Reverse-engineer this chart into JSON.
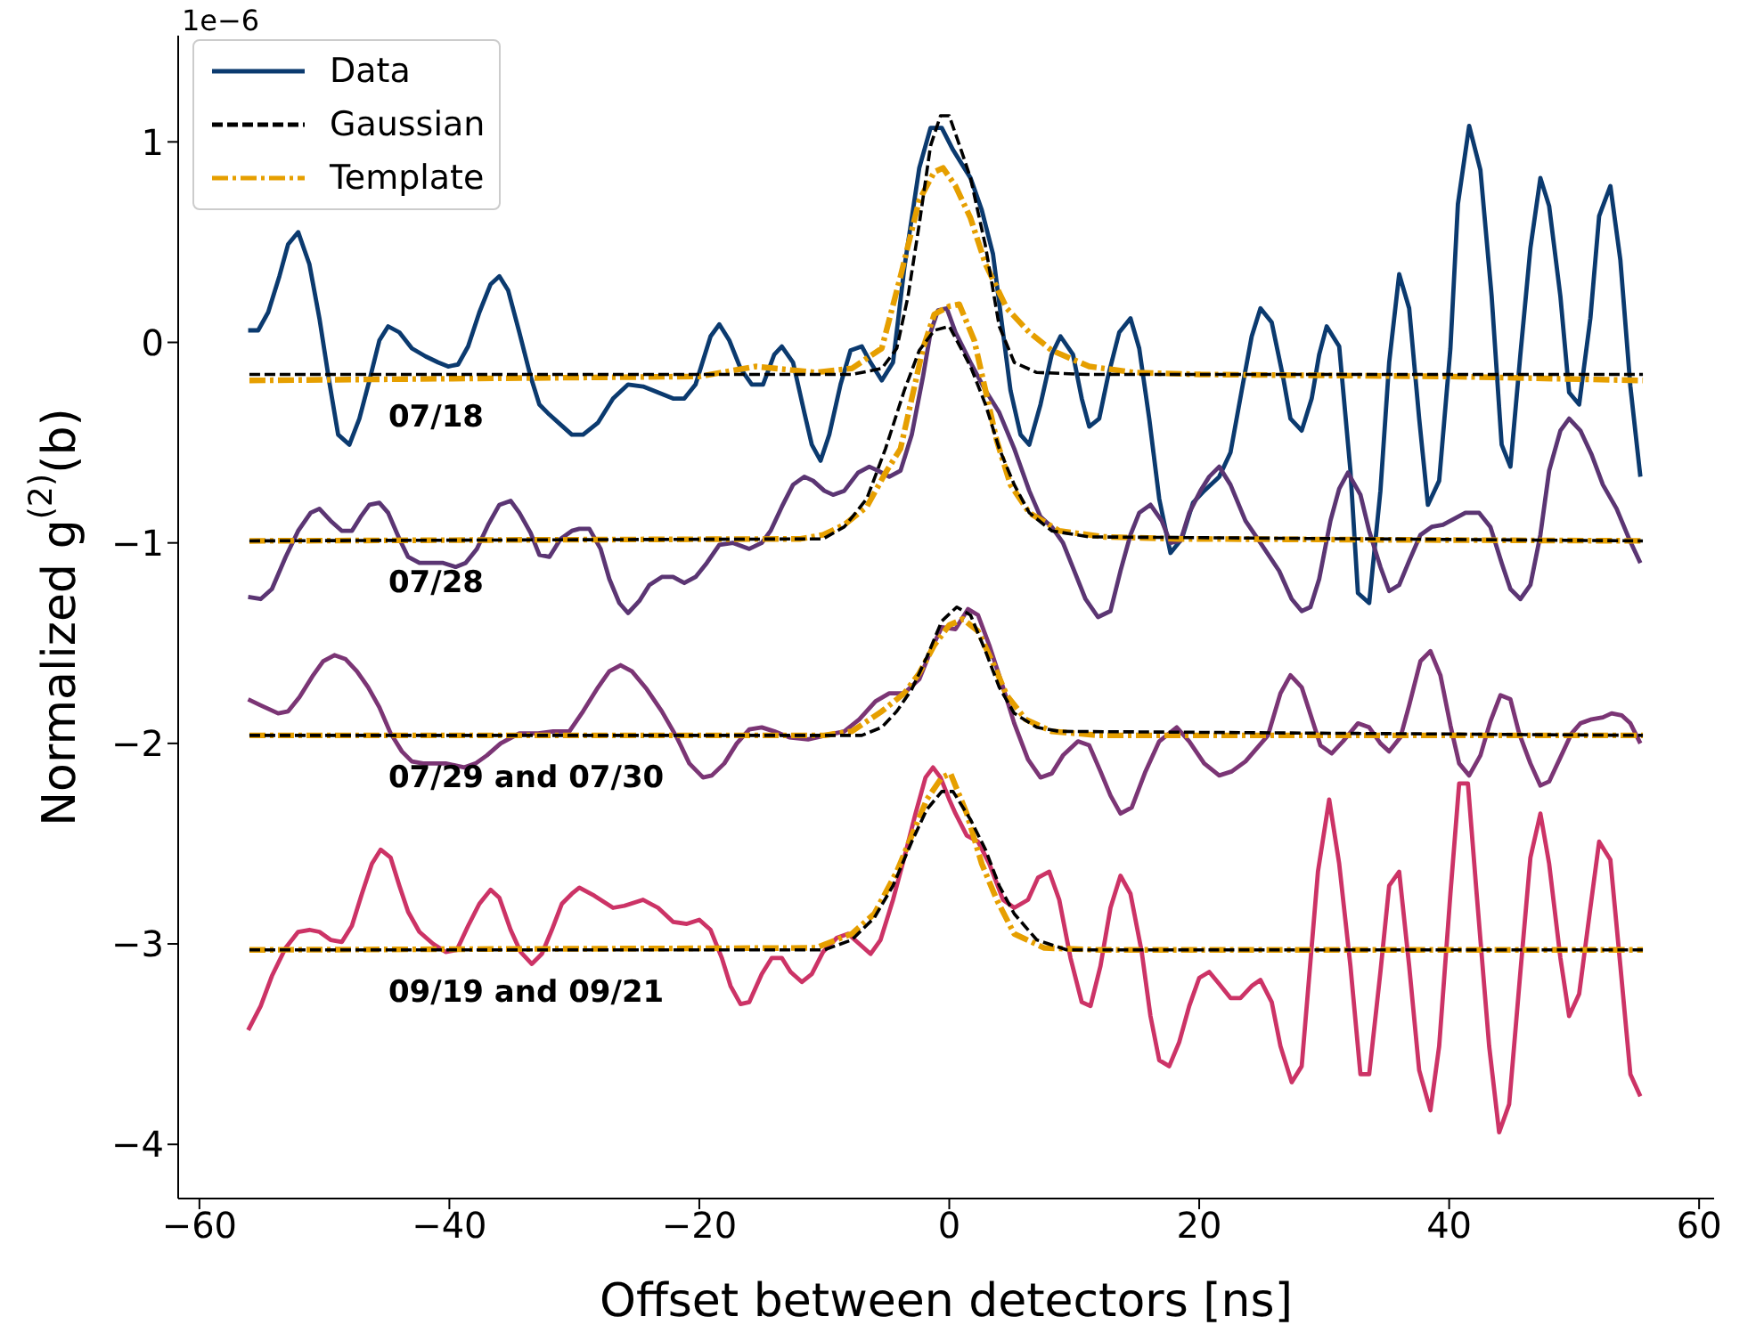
{
  "chart_data": {
    "type": "line",
    "xlabel": "Offset between detectors [ns]",
    "ylabel": "Normalized g$^{(2)}$(b)",
    "xlim": [
      -61.7,
      61.2
    ],
    "xticks": [
      -60,
      -40,
      -20,
      0,
      20,
      40,
      60
    ],
    "ylim": [
      -4.27,
      1.53
    ],
    "yticks": [
      -4,
      -3,
      -2,
      -1,
      0,
      1
    ],
    "legend": "top left",
    "annotations": [
      "1e−6",
      "07/18",
      "07/28",
      "07/29 and 07/30",
      "09/19 and 09/21"
    ],
    "series": [
      {
        "name": "Data",
        "color": "#0b3a6f",
        "line_style": "solid",
        "x": [
          -56.1,
          -55.3,
          -54.5,
          -53.6,
          -52.9,
          -52.1,
          -51.2,
          -50.4,
          -49.6,
          -48.9,
          -48.0,
          -47.2,
          -46.4,
          -45.6,
          -44.9,
          -44.0,
          -43.0,
          -41.9,
          -40.9,
          -40.1,
          -39.3,
          -38.5,
          -37.6,
          -36.7,
          -36.0,
          -35.3,
          -34.4,
          -33.5,
          -32.8,
          -32.0,
          -31.1,
          -30.2,
          -29.3,
          -28.1,
          -26.9,
          -25.7,
          -24.5,
          -23.3,
          -22.1,
          -21.2,
          -20.3,
          -19.1,
          -18.4,
          -17.6,
          -16.7,
          -15.8,
          -14.9,
          -14.0,
          -13.4,
          -12.5,
          -11.6,
          -11.0,
          -10.3,
          -9.6,
          -8.7,
          -7.9,
          -7.0,
          -6.3,
          -5.4,
          -4.5,
          -3.6,
          -2.4,
          -1.5,
          -0.6,
          0.3,
          1.0,
          1.7,
          2.6,
          3.5,
          4.3,
          4.9,
          5.7,
          6.4,
          7.3,
          8.2,
          8.9,
          9.9,
          10.6,
          11.2,
          12.0,
          12.7,
          13.6,
          14.5,
          15.2,
          16.0,
          16.8,
          17.7,
          18.6,
          19.5,
          20.4,
          21.6,
          22.5,
          23.4,
          24.2,
          24.9,
          25.8,
          26.7,
          27.3,
          28.2,
          29.0,
          29.6,
          30.2,
          31.2,
          32.1,
          32.7,
          33.6,
          34.5,
          35.2,
          36.0,
          36.8,
          37.6,
          38.3,
          39.2,
          40.1,
          40.7,
          41.6,
          42.5,
          43.4,
          44.2,
          44.9,
          45.7,
          46.5,
          47.3,
          48.0,
          48.9,
          49.6,
          50.4,
          51.3,
          52.0,
          52.9,
          53.7,
          54.5,
          55.3
        ],
        "values": [
          0.06,
          0.06,
          0.15,
          0.33,
          0.49,
          0.55,
          0.39,
          0.12,
          -0.2,
          -0.46,
          -0.51,
          -0.38,
          -0.19,
          0.01,
          0.08,
          0.05,
          -0.03,
          -0.07,
          -0.1,
          -0.12,
          -0.11,
          -0.02,
          0.15,
          0.29,
          0.33,
          0.26,
          0.05,
          -0.17,
          -0.31,
          -0.36,
          -0.41,
          -0.46,
          -0.46,
          -0.4,
          -0.28,
          -0.21,
          -0.22,
          -0.25,
          -0.28,
          -0.28,
          -0.21,
          0.03,
          0.09,
          0.01,
          -0.13,
          -0.21,
          -0.21,
          -0.06,
          -0.02,
          -0.1,
          -0.35,
          -0.51,
          -0.59,
          -0.46,
          -0.21,
          -0.04,
          -0.02,
          -0.1,
          -0.19,
          -0.1,
          0.37,
          0.87,
          1.07,
          1.07,
          0.96,
          0.89,
          0.82,
          0.66,
          0.44,
          0.05,
          -0.24,
          -0.46,
          -0.51,
          -0.31,
          -0.06,
          0.03,
          -0.06,
          -0.28,
          -0.42,
          -0.38,
          -0.17,
          0.05,
          0.12,
          -0.03,
          -0.38,
          -0.78,
          -1.05,
          -0.98,
          -0.8,
          -0.74,
          -0.67,
          -0.55,
          -0.24,
          0.03,
          0.17,
          0.1,
          -0.17,
          -0.38,
          -0.44,
          -0.28,
          -0.06,
          0.08,
          -0.02,
          -0.64,
          -1.25,
          -1.3,
          -0.74,
          -0.1,
          0.34,
          0.17,
          -0.38,
          -0.81,
          -0.69,
          -0.03,
          0.69,
          1.08,
          0.86,
          0.23,
          -0.51,
          -0.62,
          -0.06,
          0.47,
          0.82,
          0.68,
          0.23,
          -0.25,
          -0.31,
          0.12,
          0.63,
          0.78,
          0.41,
          -0.22,
          -0.67
        ]
      },
      {
        "name": "Gaussian",
        "color": "#000000",
        "line_style": "dashed",
        "x": [
          -56,
          -7.8,
          -5.4,
          -4.2,
          -3.3,
          -2.4,
          -1.5,
          -0.7,
          0,
          1.0,
          1.7,
          2.9,
          4.0,
          5.2,
          7.0,
          11.0,
          55.5
        ],
        "values": [
          -0.16,
          -0.16,
          -0.13,
          -0.03,
          0.23,
          0.59,
          0.98,
          1.13,
          1.13,
          0.95,
          0.82,
          0.48,
          0.08,
          -0.1,
          -0.15,
          -0.16,
          -0.16
        ]
      },
      {
        "name": "Template",
        "color": "#e69f00",
        "line_style": "dashdot",
        "x": [
          -56,
          -20,
          -15.5,
          -10.7,
          -7.8,
          -5.4,
          -3.9,
          -2.4,
          -1.2,
          -0.5,
          0.5,
          1.7,
          2.9,
          4.6,
          6.4,
          8.2,
          11.2,
          14.8,
          20.1,
          40,
          55.5
        ],
        "values": [
          -0.19,
          -0.17,
          -0.12,
          -0.15,
          -0.13,
          -0.03,
          0.33,
          0.71,
          0.85,
          0.87,
          0.78,
          0.62,
          0.39,
          0.17,
          0.05,
          -0.04,
          -0.12,
          -0.15,
          -0.16,
          -0.17,
          -0.19
        ]
      },
      {
        "color": "#5b3573",
        "line_style": "solid",
        "x": [
          -56.1,
          -55.1,
          -54.2,
          -53.1,
          -52.1,
          -51.1,
          -50.4,
          -49.5,
          -48.6,
          -47.8,
          -47.1,
          -46.4,
          -45.6,
          -44.9,
          -44.0,
          -43.3,
          -42.4,
          -41.5,
          -40.5,
          -39.5,
          -38.7,
          -37.8,
          -36.9,
          -36.0,
          -35.1,
          -34.4,
          -33.5,
          -32.8,
          -32.0,
          -31.1,
          -30.2,
          -29.6,
          -28.8,
          -27.9,
          -27.2,
          -26.4,
          -25.7,
          -24.8,
          -24.0,
          -23.0,
          -22.1,
          -21.2,
          -20.3,
          -19.4,
          -18.4,
          -17.3,
          -16.0,
          -15.0,
          -14.3,
          -13.4,
          -12.5,
          -11.6,
          -10.9,
          -10.0,
          -9.3,
          -8.4,
          -7.3,
          -6.4,
          -5.7,
          -4.8,
          -3.9,
          -3.0,
          -2.1,
          -1.5,
          -0.9,
          -0.2,
          0.5,
          1.7,
          2.9,
          4.0,
          5.2,
          6.4,
          7.3,
          8.2,
          9.1,
          10.0,
          10.9,
          11.9,
          12.9,
          13.7,
          14.5,
          15.2,
          16.1,
          17.0,
          17.7,
          18.5,
          19.2,
          20.1,
          20.8,
          21.6,
          22.5,
          23.7,
          24.9,
          26.4,
          27.4,
          28.2,
          28.9,
          29.6,
          30.5,
          31.2,
          31.9,
          32.9,
          33.6,
          34.5,
          35.2,
          36.0,
          36.8,
          37.7,
          38.6,
          39.5,
          40.4,
          41.3,
          42.4,
          43.3,
          44.2,
          44.9,
          45.7,
          46.5,
          47.3,
          48.0,
          48.9,
          49.6,
          50.5,
          51.4,
          52.3,
          53.4,
          54.4,
          55.3
        ],
        "values": [
          -1.27,
          -1.28,
          -1.23,
          -1.07,
          -0.94,
          -0.85,
          -0.83,
          -0.89,
          -0.94,
          -0.94,
          -0.87,
          -0.81,
          -0.8,
          -0.85,
          -0.98,
          -1.07,
          -1.1,
          -1.1,
          -1.1,
          -1.12,
          -1.1,
          -1.03,
          -0.91,
          -0.81,
          -0.79,
          -0.85,
          -0.95,
          -1.06,
          -1.07,
          -0.98,
          -0.94,
          -0.93,
          -0.93,
          -1.03,
          -1.18,
          -1.3,
          -1.35,
          -1.29,
          -1.21,
          -1.17,
          -1.17,
          -1.2,
          -1.17,
          -1.1,
          -1.01,
          -1.0,
          -1.03,
          -1.0,
          -0.94,
          -0.82,
          -0.71,
          -0.67,
          -0.69,
          -0.74,
          -0.76,
          -0.74,
          -0.65,
          -0.62,
          -0.64,
          -0.67,
          -0.64,
          -0.46,
          -0.17,
          0.05,
          0.16,
          0.17,
          0.05,
          -0.1,
          -0.24,
          -0.35,
          -0.53,
          -0.74,
          -0.87,
          -0.92,
          -1.0,
          -1.14,
          -1.28,
          -1.37,
          -1.34,
          -1.14,
          -0.96,
          -0.85,
          -0.81,
          -0.89,
          -1.0,
          -0.99,
          -0.85,
          -0.74,
          -0.67,
          -0.62,
          -0.71,
          -0.89,
          -1.0,
          -1.14,
          -1.28,
          -1.34,
          -1.32,
          -1.18,
          -0.89,
          -0.73,
          -0.65,
          -0.76,
          -0.94,
          -1.12,
          -1.24,
          -1.21,
          -1.09,
          -0.96,
          -0.92,
          -0.91,
          -0.88,
          -0.85,
          -0.85,
          -0.92,
          -1.1,
          -1.23,
          -1.28,
          -1.21,
          -0.96,
          -0.64,
          -0.44,
          -0.38,
          -0.44,
          -0.56,
          -0.71,
          -0.83,
          -0.98,
          -1.1
        ]
      },
      {
        "color": "#000000",
        "line_style": "dashed",
        "x": [
          -56,
          -10.1,
          -8.4,
          -6.6,
          -5.1,
          -3.6,
          -2.4,
          -1.2,
          0,
          1.7,
          2.9,
          4.0,
          5.2,
          6.4,
          8.2,
          11.2,
          55.5
        ],
        "values": [
          -0.99,
          -0.98,
          -0.92,
          -0.78,
          -0.53,
          -0.24,
          -0.04,
          0.06,
          0.08,
          -0.12,
          -0.31,
          -0.53,
          -0.71,
          -0.85,
          -0.94,
          -0.97,
          -0.99
        ]
      },
      {
        "color": "#e69f00",
        "line_style": "dashdot",
        "x": [
          -56,
          -11.9,
          -10.1,
          -8.4,
          -6.6,
          -5.1,
          -3.9,
          -3.0,
          -2.1,
          -1.2,
          0,
          0.8,
          2.0,
          2.9,
          3.8,
          4.9,
          6.4,
          8.8,
          12.4,
          18.3,
          55.5
        ],
        "values": [
          -0.99,
          -0.98,
          -0.96,
          -0.91,
          -0.82,
          -0.65,
          -0.53,
          -0.28,
          -0.03,
          0.14,
          0.18,
          0.19,
          0.01,
          -0.24,
          -0.49,
          -0.71,
          -0.85,
          -0.94,
          -0.97,
          -0.98,
          -0.99
        ]
      },
      {
        "color": "#7b3575",
        "line_style": "solid",
        "x": [
          -56.1,
          -55.1,
          -53.7,
          -52.9,
          -52.0,
          -50.9,
          -50.1,
          -49.2,
          -48.3,
          -47.4,
          -46.5,
          -45.6,
          -44.7,
          -43.8,
          -43.0,
          -42.1,
          -40.3,
          -38.8,
          -37.9,
          -37.0,
          -35.9,
          -34.4,
          -32.9,
          -31.7,
          -30.4,
          -29.3,
          -28.1,
          -27.2,
          -26.3,
          -25.4,
          -24.2,
          -23.0,
          -21.8,
          -20.8,
          -19.7,
          -19.0,
          -18.0,
          -17.0,
          -16.0,
          -15.0,
          -14.0,
          -12.8,
          -11.3,
          -9.9,
          -8.4,
          -7.2,
          -5.9,
          -4.8,
          -3.6,
          -2.4,
          -1.5,
          -0.6,
          0.5,
          1.5,
          2.3,
          3.2,
          4.3,
          5.2,
          6.3,
          7.3,
          8.2,
          9.1,
          10.3,
          11.2,
          12.1,
          12.9,
          13.7,
          14.6,
          15.7,
          16.8,
          18.2,
          19.2,
          20.4,
          21.6,
          22.6,
          23.7,
          25.5,
          26.5,
          27.3,
          28.2,
          29.7,
          30.6,
          31.5,
          32.7,
          33.6,
          34.5,
          35.2,
          36.1,
          36.8,
          37.7,
          38.5,
          39.3,
          40.1,
          40.8,
          41.6,
          42.5,
          43.3,
          44.1,
          44.9,
          45.6,
          46.5,
          47.3,
          48.0,
          48.9,
          49.8,
          50.5,
          51.4,
          52.3,
          53.0,
          53.8,
          54.5,
          55.3
        ],
        "values": [
          -1.78,
          -1.81,
          -1.85,
          -1.84,
          -1.77,
          -1.66,
          -1.59,
          -1.56,
          -1.58,
          -1.64,
          -1.72,
          -1.82,
          -1.95,
          -2.04,
          -2.09,
          -2.1,
          -2.1,
          -2.12,
          -2.1,
          -2.06,
          -2.0,
          -1.95,
          -1.95,
          -1.94,
          -1.94,
          -1.84,
          -1.72,
          -1.64,
          -1.61,
          -1.64,
          -1.73,
          -1.84,
          -1.97,
          -2.1,
          -2.17,
          -2.16,
          -2.1,
          -2.0,
          -1.93,
          -1.92,
          -1.94,
          -1.97,
          -1.98,
          -1.96,
          -1.94,
          -1.88,
          -1.79,
          -1.75,
          -1.75,
          -1.68,
          -1.54,
          -1.42,
          -1.43,
          -1.33,
          -1.36,
          -1.51,
          -1.72,
          -1.9,
          -2.08,
          -2.17,
          -2.15,
          -2.06,
          -1.99,
          -2.01,
          -2.14,
          -2.26,
          -2.35,
          -2.32,
          -2.14,
          -1.99,
          -1.92,
          -1.99,
          -2.1,
          -2.16,
          -2.14,
          -2.09,
          -1.96,
          -1.75,
          -1.66,
          -1.72,
          -2.01,
          -2.05,
          -1.99,
          -1.9,
          -1.92,
          -2.0,
          -2.04,
          -1.97,
          -1.81,
          -1.59,
          -1.54,
          -1.66,
          -1.91,
          -2.1,
          -2.16,
          -2.06,
          -1.89,
          -1.76,
          -1.78,
          -1.95,
          -2.1,
          -2.21,
          -2.19,
          -2.07,
          -1.95,
          -1.9,
          -1.88,
          -1.87,
          -1.85,
          -1.86,
          -1.9,
          -2.0
        ]
      },
      {
        "color": "#000000",
        "line_style": "dashed",
        "x": [
          -56,
          -7,
          -5.4,
          -4.2,
          -3.0,
          -1.8,
          -0.6,
          0.6,
          1.7,
          2.9,
          4.0,
          5.2,
          7.0,
          8.8,
          55.5
        ],
        "values": [
          -1.96,
          -1.96,
          -1.92,
          -1.84,
          -1.73,
          -1.57,
          -1.39,
          -1.32,
          -1.36,
          -1.54,
          -1.72,
          -1.85,
          -1.92,
          -1.94,
          -1.96
        ]
      },
      {
        "color": "#e69f00",
        "line_style": "dashdot",
        "x": [
          -56,
          -10,
          -7.8,
          -5.4,
          -3.6,
          -2.4,
          -1.2,
          0,
          1.1,
          2.3,
          3.5,
          4.6,
          6.1,
          8.2,
          12,
          55.5
        ],
        "values": [
          -1.96,
          -1.96,
          -1.94,
          -1.84,
          -1.75,
          -1.65,
          -1.51,
          -1.41,
          -1.38,
          -1.44,
          -1.6,
          -1.76,
          -1.88,
          -1.94,
          -1.96,
          -1.96
        ]
      },
      {
        "color": "#cc3366",
        "line_style": "solid",
        "x": [
          -56.1,
          -55.1,
          -54.2,
          -53.1,
          -52.1,
          -51.2,
          -50.4,
          -49.5,
          -48.6,
          -47.8,
          -47.0,
          -46.2,
          -45.5,
          -44.7,
          -44.0,
          -43.3,
          -42.4,
          -41.3,
          -40.3,
          -39.4,
          -38.5,
          -37.6,
          -36.7,
          -36.0,
          -35.1,
          -34.3,
          -33.4,
          -32.6,
          -31.8,
          -31.0,
          -30.2,
          -29.6,
          -28.4,
          -26.9,
          -26.0,
          -24.5,
          -23.3,
          -22.1,
          -21.0,
          -20.0,
          -19.1,
          -18.2,
          -17.5,
          -16.7,
          -16.0,
          -15.0,
          -14.2,
          -13.4,
          -12.7,
          -11.8,
          -11.0,
          -10.1,
          -9.0,
          -8.1,
          -7.2,
          -6.3,
          -5.5,
          -4.5,
          -3.6,
          -2.7,
          -1.9,
          -1.3,
          -0.7,
          0.0,
          0.5,
          1.4,
          2.3,
          3.2,
          4.3,
          5.2,
          6.3,
          7.1,
          8.0,
          8.8,
          9.7,
          10.6,
          11.3,
          12.1,
          12.9,
          13.7,
          14.5,
          15.4,
          16.1,
          16.8,
          17.6,
          18.4,
          19.2,
          20.0,
          20.8,
          21.6,
          22.5,
          23.3,
          24.2,
          24.9,
          25.8,
          26.5,
          27.4,
          28.2,
          29.5,
          30.4,
          31.2,
          32.1,
          32.9,
          33.6,
          34.5,
          35.2,
          36.0,
          36.8,
          37.6,
          38.5,
          39.2,
          40.1,
          40.8,
          41.5,
          42.2,
          43.2,
          44.0,
          44.8,
          45.7,
          46.5,
          47.3,
          48.0,
          48.9,
          49.6,
          50.4,
          51.3,
          52.0,
          52.9,
          53.7,
          54.5,
          55.3
        ],
        "values": [
          -3.43,
          -3.31,
          -3.16,
          -3.02,
          -2.94,
          -2.93,
          -2.94,
          -2.98,
          -2.99,
          -2.91,
          -2.75,
          -2.6,
          -2.53,
          -2.57,
          -2.71,
          -2.84,
          -2.94,
          -3.0,
          -3.04,
          -3.03,
          -2.91,
          -2.8,
          -2.73,
          -2.77,
          -2.93,
          -3.04,
          -3.1,
          -3.05,
          -2.93,
          -2.8,
          -2.75,
          -2.72,
          -2.76,
          -2.82,
          -2.81,
          -2.78,
          -2.82,
          -2.89,
          -2.9,
          -2.88,
          -2.93,
          -3.07,
          -3.21,
          -3.3,
          -3.29,
          -3.15,
          -3.07,
          -3.07,
          -3.14,
          -3.19,
          -3.15,
          -3.04,
          -2.97,
          -2.95,
          -3.0,
          -3.05,
          -2.98,
          -2.78,
          -2.57,
          -2.35,
          -2.17,
          -2.12,
          -2.17,
          -2.28,
          -2.35,
          -2.46,
          -2.49,
          -2.6,
          -2.78,
          -2.82,
          -2.78,
          -2.67,
          -2.64,
          -2.78,
          -3.07,
          -3.29,
          -3.31,
          -3.11,
          -2.82,
          -2.66,
          -2.75,
          -3.04,
          -3.36,
          -3.58,
          -3.61,
          -3.49,
          -3.31,
          -3.17,
          -3.14,
          -3.2,
          -3.27,
          -3.27,
          -3.21,
          -3.18,
          -3.29,
          -3.51,
          -3.69,
          -3.61,
          -2.64,
          -2.28,
          -2.6,
          -3.11,
          -3.65,
          -3.65,
          -3.14,
          -2.71,
          -2.64,
          -3.11,
          -3.63,
          -3.83,
          -3.51,
          -2.75,
          -2.2,
          -2.2,
          -2.75,
          -3.51,
          -3.94,
          -3.8,
          -3.14,
          -2.57,
          -2.35,
          -2.6,
          -3.07,
          -3.36,
          -3.25,
          -2.82,
          -2.49,
          -2.58,
          -3.11,
          -3.65,
          -3.76
        ]
      },
      {
        "color": "#000000",
        "line_style": "dashed",
        "x": [
          -56,
          -10,
          -7.8,
          -6.0,
          -4.5,
          -3.0,
          -1.8,
          -0.6,
          0.3,
          1.7,
          2.9,
          4.0,
          5.2,
          7.0,
          9.4,
          55.5
        ],
        "values": [
          -3.03,
          -3.03,
          -2.98,
          -2.87,
          -2.71,
          -2.49,
          -2.33,
          -2.24,
          -2.24,
          -2.38,
          -2.53,
          -2.71,
          -2.85,
          -2.98,
          -3.03,
          -3.03
        ]
      },
      {
        "color": "#e69f00",
        "line_style": "dashdot",
        "x": [
          -56,
          -10.7,
          -7.8,
          -6.0,
          -4.2,
          -3.0,
          -1.8,
          -0.6,
          0.1,
          1.4,
          2.6,
          3.8,
          5.2,
          7.6,
          12,
          55.5
        ],
        "values": [
          -3.03,
          -3.02,
          -2.95,
          -2.85,
          -2.64,
          -2.46,
          -2.28,
          -2.17,
          -2.15,
          -2.35,
          -2.6,
          -2.78,
          -2.95,
          -3.02,
          -3.03,
          -3.03
        ]
      }
    ]
  }
}
